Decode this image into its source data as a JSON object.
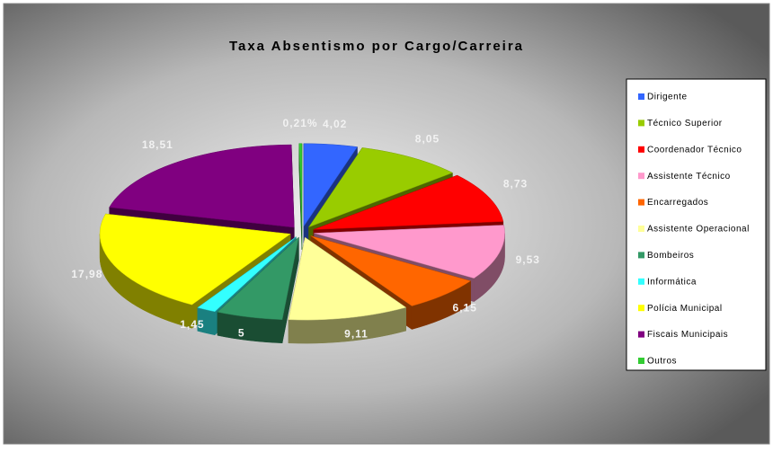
{
  "chart_data": {
    "type": "pie",
    "title": "Taxa Absentismo por Cargo/Carreira",
    "categories": [
      "Dirigente",
      "Técnico Superior",
      "Coordenador Técnico",
      "Assistente Técnico",
      "Encarregados",
      "Assistente Operacional",
      "Bombeiros",
      "Informática",
      "Polícia Municipal",
      "Fiscais Municipais",
      "Outros"
    ],
    "values": [
      4.02,
      8.05,
      8.73,
      9.53,
      6.15,
      9.11,
      5,
      1.45,
      17.98,
      18.51,
      0.21
    ],
    "value_labels": [
      "4,02",
      "8,05",
      "8,73",
      "9,53",
      "6,15",
      "9,11",
      "5",
      "1,45",
      "17,98",
      "18,51",
      "0,21%"
    ],
    "colors": [
      "#3366ff",
      "#99cc00",
      "#ff0000",
      "#ff99cc",
      "#ff6600",
      "#ffff99",
      "#339966",
      "#33ffff",
      "#ffff00",
      "#800080",
      "#33cc33"
    ],
    "legend": "right"
  }
}
